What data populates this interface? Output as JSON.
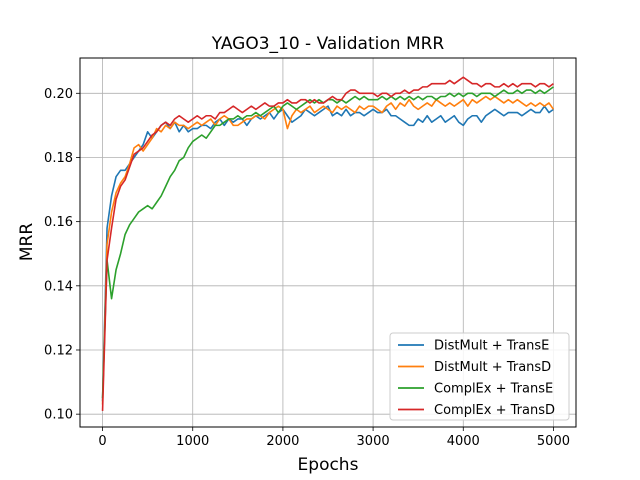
{
  "chart_data": {
    "type": "line",
    "title": "YAGO3_10 - Validation MRR",
    "xlabel": "Epochs",
    "ylabel": "MRR",
    "xlim": [
      -250,
      5250
    ],
    "ylim": [
      0.096,
      0.211
    ],
    "xticks": [
      0,
      1000,
      2000,
      3000,
      4000,
      5000
    ],
    "xtick_labels": [
      "0",
      "1000",
      "2000",
      "3000",
      "4000",
      "5000"
    ],
    "yticks": [
      0.1,
      0.12,
      0.14,
      0.16,
      0.18,
      0.2
    ],
    "ytick_labels": [
      "0.10",
      "0.12",
      "0.14",
      "0.16",
      "0.18",
      "0.20"
    ],
    "grid": true,
    "legend_position": "lower-right",
    "x": [
      0,
      50,
      100,
      150,
      200,
      250,
      300,
      350,
      400,
      450,
      500,
      550,
      600,
      650,
      700,
      750,
      800,
      850,
      900,
      950,
      1000,
      1050,
      1100,
      1150,
      1200,
      1250,
      1300,
      1350,
      1400,
      1450,
      1500,
      1550,
      1600,
      1650,
      1700,
      1750,
      1800,
      1850,
      1900,
      1950,
      2000,
      2050,
      2100,
      2150,
      2200,
      2250,
      2300,
      2350,
      2400,
      2450,
      2500,
      2550,
      2600,
      2650,
      2700,
      2750,
      2800,
      2850,
      2900,
      2950,
      3000,
      3050,
      3100,
      3150,
      3200,
      3250,
      3300,
      3350,
      3400,
      3450,
      3500,
      3550,
      3600,
      3650,
      3700,
      3750,
      3800,
      3850,
      3900,
      3950,
      4000,
      4050,
      4100,
      4150,
      4200,
      4250,
      4300,
      4350,
      4400,
      4450,
      4500,
      4550,
      4600,
      4650,
      4700,
      4750,
      4800,
      4850,
      4900,
      4950,
      5000
    ],
    "series": [
      {
        "name": "DistMult + TransE",
        "color": "#1f77b4",
        "values": [
          0.104,
          0.158,
          0.168,
          0.174,
          0.176,
          0.176,
          0.178,
          0.18,
          0.182,
          0.184,
          0.188,
          0.186,
          0.188,
          0.19,
          0.191,
          0.189,
          0.191,
          0.188,
          0.19,
          0.188,
          0.189,
          0.189,
          0.19,
          0.19,
          0.189,
          0.191,
          0.192,
          0.19,
          0.192,
          0.191,
          0.192,
          0.192,
          0.19,
          0.192,
          0.193,
          0.192,
          0.193,
          0.194,
          0.192,
          0.194,
          0.195,
          0.193,
          0.191,
          0.192,
          0.193,
          0.195,
          0.194,
          0.193,
          0.194,
          0.195,
          0.196,
          0.193,
          0.194,
          0.193,
          0.195,
          0.193,
          0.194,
          0.194,
          0.193,
          0.194,
          0.195,
          0.194,
          0.194,
          0.195,
          0.193,
          0.193,
          0.192,
          0.191,
          0.19,
          0.19,
          0.192,
          0.191,
          0.193,
          0.191,
          0.192,
          0.193,
          0.191,
          0.192,
          0.193,
          0.191,
          0.19,
          0.192,
          0.193,
          0.193,
          0.191,
          0.193,
          0.194,
          0.195,
          0.194,
          0.193,
          0.194,
          0.194,
          0.194,
          0.193,
          0.194,
          0.195,
          0.194,
          0.194,
          0.196,
          0.194,
          0.195
        ]
      },
      {
        "name": "DistMult + TransD",
        "color": "#ff7f0e",
        "values": [
          0.103,
          0.153,
          0.163,
          0.169,
          0.172,
          0.174,
          0.178,
          0.183,
          0.184,
          0.182,
          0.184,
          0.186,
          0.189,
          0.188,
          0.19,
          0.189,
          0.191,
          0.19,
          0.19,
          0.189,
          0.19,
          0.191,
          0.19,
          0.191,
          0.192,
          0.19,
          0.192,
          0.193,
          0.192,
          0.19,
          0.19,
          0.191,
          0.192,
          0.192,
          0.193,
          0.193,
          0.192,
          0.194,
          0.195,
          0.196,
          0.195,
          0.189,
          0.193,
          0.195,
          0.194,
          0.195,
          0.196,
          0.194,
          0.195,
          0.196,
          0.195,
          0.194,
          0.196,
          0.195,
          0.196,
          0.195,
          0.194,
          0.196,
          0.195,
          0.196,
          0.196,
          0.195,
          0.194,
          0.196,
          0.197,
          0.195,
          0.197,
          0.196,
          0.198,
          0.196,
          0.195,
          0.196,
          0.197,
          0.196,
          0.198,
          0.197,
          0.196,
          0.197,
          0.196,
          0.197,
          0.198,
          0.196,
          0.198,
          0.197,
          0.198,
          0.199,
          0.198,
          0.199,
          0.198,
          0.197,
          0.198,
          0.197,
          0.198,
          0.197,
          0.196,
          0.197,
          0.196,
          0.197,
          0.196,
          0.197,
          0.195
        ]
      },
      {
        "name": "ComplEx + TransE",
        "color": "#2ca02c",
        "values": [
          0.105,
          0.148,
          0.136,
          0.145,
          0.15,
          0.156,
          0.159,
          0.161,
          0.163,
          0.164,
          0.165,
          0.164,
          0.166,
          0.168,
          0.171,
          0.174,
          0.176,
          0.179,
          0.18,
          0.183,
          0.185,
          0.186,
          0.187,
          0.186,
          0.188,
          0.19,
          0.19,
          0.191,
          0.192,
          0.192,
          0.193,
          0.192,
          0.193,
          0.193,
          0.194,
          0.193,
          0.194,
          0.195,
          0.196,
          0.194,
          0.196,
          0.197,
          0.196,
          0.195,
          0.196,
          0.197,
          0.198,
          0.197,
          0.198,
          0.197,
          0.198,
          0.198,
          0.197,
          0.198,
          0.197,
          0.198,
          0.199,
          0.198,
          0.199,
          0.198,
          0.198,
          0.198,
          0.199,
          0.198,
          0.199,
          0.198,
          0.199,
          0.198,
          0.199,
          0.198,
          0.199,
          0.198,
          0.199,
          0.199,
          0.198,
          0.199,
          0.199,
          0.2,
          0.199,
          0.2,
          0.199,
          0.2,
          0.2,
          0.199,
          0.2,
          0.2,
          0.2,
          0.199,
          0.2,
          0.201,
          0.2,
          0.2,
          0.201,
          0.2,
          0.201,
          0.201,
          0.2,
          0.201,
          0.2,
          0.201,
          0.202
        ]
      },
      {
        "name": "ComplEx + TransD",
        "color": "#d62728",
        "values": [
          0.101,
          0.148,
          0.158,
          0.167,
          0.171,
          0.173,
          0.177,
          0.181,
          0.182,
          0.183,
          0.185,
          0.187,
          0.188,
          0.19,
          0.191,
          0.19,
          0.192,
          0.193,
          0.192,
          0.191,
          0.192,
          0.193,
          0.192,
          0.193,
          0.193,
          0.192,
          0.194,
          0.194,
          0.195,
          0.196,
          0.195,
          0.194,
          0.195,
          0.196,
          0.195,
          0.196,
          0.197,
          0.196,
          0.196,
          0.197,
          0.197,
          0.198,
          0.197,
          0.197,
          0.198,
          0.198,
          0.197,
          0.198,
          0.197,
          0.197,
          0.198,
          0.199,
          0.198,
          0.198,
          0.2,
          0.201,
          0.201,
          0.2,
          0.2,
          0.2,
          0.2,
          0.199,
          0.2,
          0.2,
          0.199,
          0.2,
          0.2,
          0.201,
          0.2,
          0.201,
          0.201,
          0.202,
          0.202,
          0.203,
          0.203,
          0.203,
          0.203,
          0.204,
          0.203,
          0.204,
          0.205,
          0.204,
          0.203,
          0.203,
          0.202,
          0.203,
          0.203,
          0.202,
          0.202,
          0.203,
          0.202,
          0.203,
          0.202,
          0.203,
          0.203,
          0.203,
          0.202,
          0.203,
          0.203,
          0.202,
          0.203
        ]
      }
    ]
  }
}
